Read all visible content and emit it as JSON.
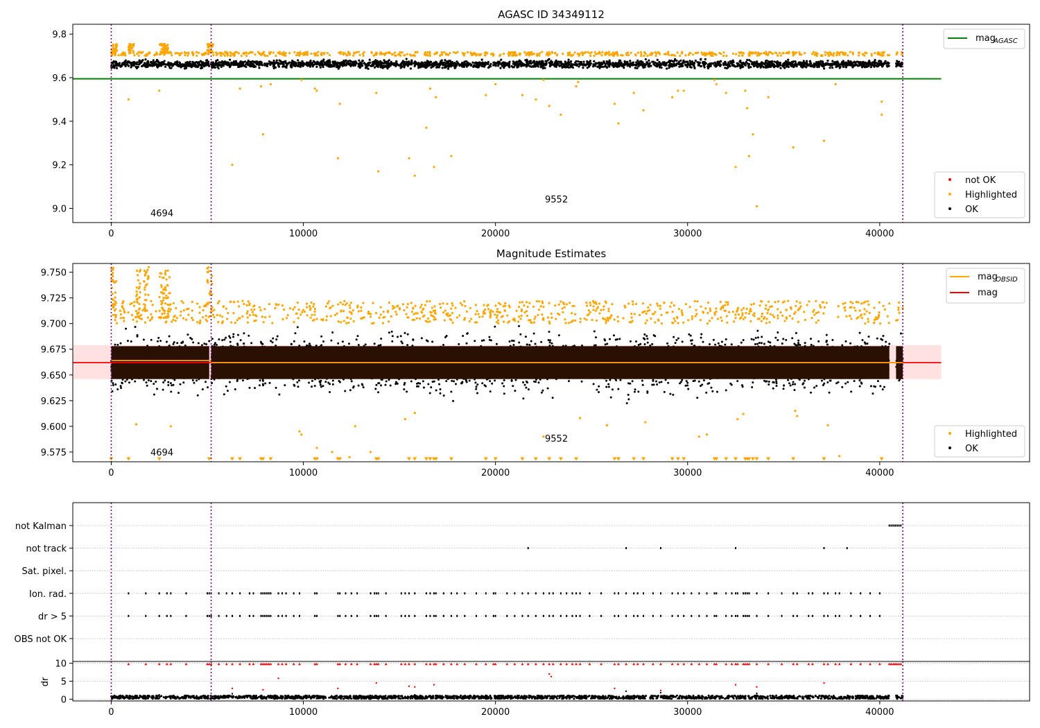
{
  "figure": {
    "note_left": "4694",
    "note_right": "9552"
  },
  "chart_data": [
    {
      "type": "scatter",
      "title": "AGASC ID 34349112",
      "xlim": [
        -2000,
        47800
      ],
      "ylim": [
        8.935,
        9.845
      ],
      "x_ticks": [
        0,
        10000,
        20000,
        30000,
        40000
      ],
      "y_ticks": [
        9.0,
        9.2,
        9.4,
        9.6,
        9.8
      ],
      "y_tick_labels": [
        "9.0",
        "9.2",
        "9.4",
        "9.6",
        "9.8"
      ],
      "vlines": [
        0,
        5200,
        41200
      ],
      "hline": {
        "name": "mag_AGASC",
        "label": "mag",
        "label_sub": "AGASC",
        "y": 9.595,
        "color": "#008000",
        "x_range": [
          -2000,
          43200
        ]
      },
      "ok_band": {
        "x_segments": [
          [
            0,
            5100
          ],
          [
            5200,
            40500
          ],
          [
            40850,
            41200
          ]
        ],
        "y_range": [
          9.63,
          9.7
        ]
      },
      "legend_lines": [
        {
          "label": "mag",
          "sub": "AGASC",
          "color": "#008000"
        }
      ],
      "legend_points": [
        {
          "label": "not OK",
          "color": "#ff0000"
        },
        {
          "label": "Highlighted",
          "color": "#ffa500"
        },
        {
          "label": "OK",
          "color": "#000000"
        }
      ],
      "highlighted_outliers": [
        [
          900,
          9.5
        ],
        [
          2500,
          9.54
        ],
        [
          6300,
          9.2
        ],
        [
          6700,
          9.55
        ],
        [
          7800,
          9.56
        ],
        [
          7900,
          9.34
        ],
        [
          8300,
          9.57
        ],
        [
          9900,
          9.59
        ],
        [
          10600,
          9.55
        ],
        [
          10700,
          9.54
        ],
        [
          11800,
          9.23
        ],
        [
          11900,
          9.48
        ],
        [
          13800,
          9.53
        ],
        [
          13900,
          9.17
        ],
        [
          15500,
          9.23
        ],
        [
          15800,
          9.15
        ],
        [
          16400,
          9.37
        ],
        [
          16600,
          9.55
        ],
        [
          16800,
          9.19
        ],
        [
          16900,
          9.51
        ],
        [
          17700,
          9.24
        ],
        [
          19500,
          9.52
        ],
        [
          20000,
          9.57
        ],
        [
          21400,
          9.52
        ],
        [
          22100,
          9.5
        ],
        [
          22500,
          9.59
        ],
        [
          22800,
          9.47
        ],
        [
          23400,
          9.43
        ],
        [
          24200,
          9.56
        ],
        [
          24300,
          9.58
        ],
        [
          26200,
          9.48
        ],
        [
          26400,
          9.39
        ],
        [
          27200,
          9.53
        ],
        [
          27700,
          9.45
        ],
        [
          29200,
          9.51
        ],
        [
          29500,
          9.54
        ],
        [
          29800,
          9.54
        ],
        [
          31400,
          9.59
        ],
        [
          31500,
          9.57
        ],
        [
          32000,
          9.53
        ],
        [
          32500,
          9.19
        ],
        [
          33000,
          9.54
        ],
        [
          33100,
          9.46
        ],
        [
          33200,
          9.24
        ],
        [
          33400,
          9.34
        ],
        [
          33600,
          9.01
        ],
        [
          34200,
          9.51
        ],
        [
          35500,
          9.28
        ],
        [
          37100,
          9.31
        ],
        [
          37700,
          9.57
        ],
        [
          40100,
          9.49
        ],
        [
          40100,
          9.43
        ]
      ]
    },
    {
      "type": "scatter",
      "title": "Magnitude Estimates",
      "xlim": [
        -2000,
        47800
      ],
      "ylim": [
        9.5655,
        9.7585
      ],
      "x_ticks": [
        0,
        10000,
        20000,
        30000,
        40000
      ],
      "y_ticks": [
        9.575,
        9.6,
        9.625,
        9.65,
        9.675,
        9.7,
        9.725,
        9.75
      ],
      "y_tick_labels": [
        "9.575",
        "9.600",
        "9.625",
        "9.650",
        "9.675",
        "9.700",
        "9.725",
        "9.750"
      ],
      "vlines": [
        0,
        5200,
        41200
      ],
      "mag_line": {
        "name": "mag",
        "y": 9.662,
        "color": "#ff0000",
        "x_range": [
          -2000,
          43200
        ]
      },
      "mag_band": {
        "y_range": [
          9.646,
          9.679
        ],
        "x_range": [
          -2000,
          43200
        ],
        "color": "#ffaaaa"
      },
      "mag_obsid_segments": [
        {
          "x_range": [
            0,
            5200
          ],
          "y": 9.664
        },
        {
          "x_range": [
            5200,
            41200
          ],
          "y": 9.662
        }
      ],
      "legend_lines": [
        {
          "label": "mag",
          "sub": "OBSID",
          "color": "#ffa500"
        },
        {
          "label": "mag",
          "sub": "",
          "color": "#ff0000"
        }
      ],
      "legend_points": [
        {
          "label": "Highlighted",
          "color": "#ffa500"
        },
        {
          "label": "OK",
          "color": "#000000"
        }
      ],
      "highlighted_outliers": [
        [
          1300,
          9.602
        ],
        [
          3100,
          9.6
        ],
        [
          9800,
          9.595
        ],
        [
          9900,
          9.592
        ],
        [
          10700,
          9.579
        ],
        [
          11500,
          9.575
        ],
        [
          12400,
          9.57
        ],
        [
          12700,
          9.6
        ],
        [
          13500,
          9.575
        ],
        [
          15300,
          9.607
        ],
        [
          15800,
          9.613
        ],
        [
          22500,
          9.59
        ],
        [
          24400,
          9.608
        ],
        [
          25800,
          9.601
        ],
        [
          27800,
          9.604
        ],
        [
          30600,
          9.59
        ],
        [
          31000,
          9.592
        ],
        [
          32600,
          9.607
        ],
        [
          32900,
          9.612
        ],
        [
          35600,
          9.615
        ],
        [
          35700,
          9.61
        ],
        [
          37300,
          9.601
        ],
        [
          37900,
          9.571
        ]
      ],
      "clipped_low_x": [
        0,
        900,
        2500,
        5100,
        6300,
        6700,
        7800,
        7900,
        8300,
        10600,
        10700,
        11800,
        11900,
        13800,
        13900,
        15500,
        15800,
        16400,
        16600,
        16800,
        16900,
        17700,
        19500,
        20000,
        21400,
        22100,
        22800,
        23400,
        24200,
        26200,
        26400,
        27200,
        27700,
        29200,
        29500,
        29800,
        31400,
        31500,
        32000,
        32500,
        33000,
        33100,
        33200,
        33400,
        33600,
        34200,
        35500,
        37100,
        40100
      ]
    },
    {
      "type": "scatter",
      "title": "",
      "xlim": [
        -2000,
        47800
      ],
      "categories": [
        "not Kalman",
        "not track",
        "Sat. pixel.",
        "Ion. rad.",
        "dr > 5",
        "OBS not OK"
      ],
      "vlines": [
        0,
        5200,
        41200
      ],
      "flag_points": {
        "not Kalman": [
          40500,
          40600,
          40700,
          40800,
          40900,
          41000,
          41100
        ],
        "not track": [
          21700,
          26800,
          28600,
          32500,
          37100,
          38300
        ],
        "Sat. pixel.": [],
        "Ion. rad.": [
          900,
          1800,
          2500,
          2900,
          3100,
          3900,
          5000,
          5100,
          5200,
          5600,
          6000,
          6300,
          6700,
          7200,
          7400,
          7800,
          7900,
          8000,
          8100,
          8200,
          8300,
          8700,
          8900,
          9100,
          9500,
          9800,
          10600,
          10700,
          11800,
          11900,
          12200,
          12500,
          12800,
          13500,
          13700,
          13800,
          13900,
          14300,
          15100,
          15300,
          15500,
          15800,
          16400,
          16600,
          16800,
          16900,
          17300,
          17700,
          18000,
          18400,
          19000,
          19500,
          19900,
          20000,
          20600,
          21000,
          21400,
          21700,
          22100,
          22500,
          22800,
          23000,
          23400,
          23700,
          24000,
          24200,
          24400,
          24900,
          25500,
          26200,
          26400,
          26800,
          27200,
          27400,
          27700,
          28200,
          28600,
          29200,
          29500,
          29800,
          30200,
          30600,
          31000,
          31400,
          31500,
          32000,
          32300,
          32500,
          32600,
          32900,
          33000,
          33100,
          33200,
          33600,
          34200,
          34900,
          35500,
          35700,
          36300,
          36500,
          37100,
          37300,
          37700,
          37900,
          38500,
          39000,
          39500,
          40000
        ],
        "dr > 5": [
          900,
          1800,
          2500,
          2900,
          3100,
          3900,
          5000,
          5100,
          5200,
          5600,
          6000,
          6300,
          6700,
          7200,
          7400,
          7800,
          7900,
          8000,
          8100,
          8200,
          8300,
          8700,
          8900,
          9100,
          9500,
          9800,
          10600,
          10700,
          11800,
          11900,
          12200,
          12500,
          12800,
          13500,
          13700,
          13800,
          13900,
          14300,
          15100,
          15300,
          15500,
          15800,
          16400,
          16600,
          16800,
          16900,
          17300,
          17700,
          18000,
          18400,
          19000,
          19500,
          19900,
          20000,
          20600,
          21000,
          21400,
          21700,
          22100,
          22500,
          22800,
          23000,
          23400,
          23700,
          24000,
          24200,
          24400,
          24900,
          25500,
          26200,
          26400,
          26800,
          27200,
          27400,
          27700,
          28200,
          28600,
          29200,
          29500,
          29800,
          30200,
          30600,
          31000,
          31400,
          31500,
          32000,
          32300,
          32500,
          32600,
          32900,
          33000,
          33100,
          33200,
          33600,
          34200,
          34900,
          35500,
          35700,
          36300,
          36500,
          37100,
          37300,
          37700,
          37900,
          38500,
          39000,
          39500,
          40000
        ],
        "OBS not OK": []
      }
    },
    {
      "type": "scatter",
      "title": "",
      "xlim": [
        -2000,
        47800
      ],
      "ylim": [
        -0.5,
        10.5
      ],
      "ylabel": "dr",
      "x_ticks": [
        0,
        10000,
        20000,
        30000,
        40000
      ],
      "y_ticks": [
        0,
        5,
        10
      ],
      "y_tick_labels": [
        "0",
        "5",
        "10"
      ],
      "vlines": [
        0,
        5200,
        41200
      ],
      "red_points": [
        [
          6300,
          3.0
        ],
        [
          7900,
          2.6
        ],
        [
          8700,
          5.8
        ],
        [
          11800,
          3.0
        ],
        [
          13800,
          4.5
        ],
        [
          15500,
          3.6
        ],
        [
          15800,
          3.4
        ],
        [
          16800,
          4.0
        ],
        [
          22800,
          7.0
        ],
        [
          22900,
          6.3
        ],
        [
          26200,
          3.0
        ],
        [
          28600,
          2.4
        ],
        [
          32500,
          4.0
        ],
        [
          33600,
          3.4
        ],
        [
          37100,
          4.5
        ]
      ],
      "black_points": [
        [
          2500,
          1.2
        ],
        [
          6300,
          1.5
        ],
        [
          15800,
          1.2
        ],
        [
          26800,
          2.2
        ],
        [
          28600,
          1.8
        ],
        [
          33600,
          1.6
        ]
      ]
    }
  ]
}
